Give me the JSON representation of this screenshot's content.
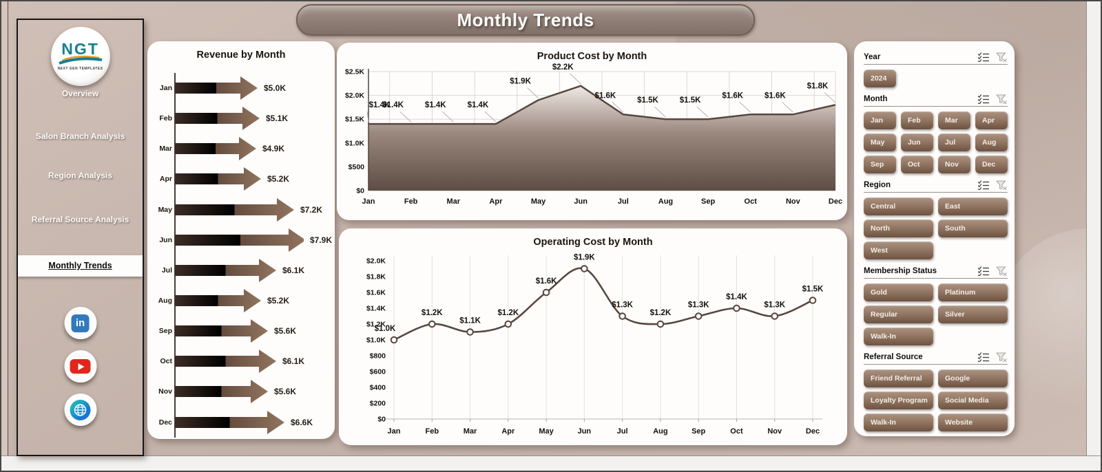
{
  "page_title": "Monthly Trends",
  "sidebar": {
    "logo_text": "NGT",
    "logo_subtext": "NEXT GEN TEMPLATES",
    "items": [
      {
        "label": "Overview",
        "active": false
      },
      {
        "label": "Salon Branch Analysis",
        "active": false
      },
      {
        "label": "Region Analysis",
        "active": false
      },
      {
        "label": "Referral Source Analysis",
        "active": false
      },
      {
        "label": "Monthly Trends",
        "active": true
      }
    ],
    "social": [
      "linkedin",
      "youtube",
      "globe"
    ]
  },
  "chart_data": [
    {
      "type": "bar",
      "orientation": "horizontal",
      "title": "Revenue by Month",
      "categories": [
        "Jan",
        "Feb",
        "Mar",
        "Apr",
        "May",
        "Jun",
        "Jul",
        "Aug",
        "Sep",
        "Oct",
        "Nov",
        "Dec"
      ],
      "values": [
        5000,
        5100,
        4900,
        5200,
        7200,
        7900,
        6100,
        5200,
        5600,
        6100,
        5600,
        6600
      ],
      "value_labels": [
        "$5.0K",
        "$5.1K",
        "$4.9K",
        "$5.2K",
        "$7.2K",
        "$7.9K",
        "$6.1K",
        "$5.2K",
        "$5.6K",
        "$6.1K",
        "$5.6K",
        "$6.6K"
      ],
      "xlim": [
        0,
        7900
      ]
    },
    {
      "type": "area",
      "title": "Product Cost by Month",
      "categories": [
        "Jan",
        "Feb",
        "Mar",
        "Apr",
        "May",
        "Jun",
        "Jul",
        "Aug",
        "Sep",
        "Oct",
        "Nov",
        "Dec"
      ],
      "values": [
        1400,
        1400,
        1400,
        1400,
        1900,
        2200,
        1600,
        1500,
        1500,
        1600,
        1600,
        1800
      ],
      "value_labels": [
        "$1.4K",
        "$1.4K",
        "$1.4K",
        "$1.4K",
        "$1.9K",
        "$2.2K",
        "$1.6K",
        "$1.5K",
        "$1.5K",
        "$1.6K",
        "$1.6K",
        "$1.8K"
      ],
      "ylim": [
        0,
        2500
      ],
      "yticks": [
        {
          "v": 0,
          "label": "$0"
        },
        {
          "v": 500,
          "label": "$500"
        },
        {
          "v": 1000,
          "label": "$1.0K"
        },
        {
          "v": 1500,
          "label": "$1.5K"
        },
        {
          "v": 2000,
          "label": "$2.0K"
        },
        {
          "v": 2500,
          "label": "$2.5K"
        }
      ],
      "grid": "horizontal and vertical, light gray",
      "legend": "none"
    },
    {
      "type": "line",
      "title": "Operating Cost by Month",
      "categories": [
        "Jan",
        "Feb",
        "Mar",
        "Apr",
        "May",
        "Jun",
        "Jul",
        "Aug",
        "Sep",
        "Oct",
        "Nov",
        "Dec"
      ],
      "values": [
        1000,
        1200,
        1100,
        1200,
        1600,
        1900,
        1300,
        1200,
        1300,
        1400,
        1300,
        1500
      ],
      "value_labels": [
        "$1.0K",
        "$1.2K",
        "$1.1K",
        "$1.2K",
        "$1.6K",
        "$1.9K",
        "$1.3K",
        "$1.2K",
        "$1.3K",
        "$1.4K",
        "$1.3K",
        "$1.5K"
      ],
      "ylim": [
        0,
        2000
      ],
      "yticks": [
        {
          "v": 0,
          "label": "$0"
        },
        {
          "v": 200,
          "label": "$200"
        },
        {
          "v": 400,
          "label": "$400"
        },
        {
          "v": 600,
          "label": "$600"
        },
        {
          "v": 800,
          "label": "$800"
        },
        {
          "v": 1000,
          "label": "$1.0K"
        },
        {
          "v": 1200,
          "label": "$1.2K"
        },
        {
          "v": 1400,
          "label": "$1.4K"
        },
        {
          "v": 1600,
          "label": "$1.6K"
        },
        {
          "v": 1800,
          "label": "$1.8K"
        },
        {
          "v": 2000,
          "label": "$2.0K"
        }
      ],
      "grid": "vertical only, light gray",
      "legend": "none"
    }
  ],
  "slicers": [
    {
      "name": "Year",
      "columns": 4,
      "options": [
        "2024"
      ]
    },
    {
      "name": "Month",
      "columns": 4,
      "options": [
        "Jan",
        "Feb",
        "Mar",
        "Apr",
        "May",
        "Jun",
        "Jul",
        "Aug",
        "Sep",
        "Oct",
        "Nov",
        "Dec"
      ]
    },
    {
      "name": "Region",
      "columns": 2,
      "options": [
        "Central",
        "East",
        "North",
        "South",
        "West"
      ]
    },
    {
      "name": "Membership Status",
      "columns": 2,
      "options": [
        "Gold",
        "Platinum",
        "Regular",
        "Silver",
        "Walk-In"
      ]
    },
    {
      "name": "Referral Source",
      "columns": 2,
      "options": [
        "Friend Referral",
        "Google",
        "Loyalty Program",
        "Social Media",
        "Walk-In",
        "Website"
      ]
    }
  ],
  "colors": {
    "background_taupe": "#c7b6ad",
    "card_white": "#fefdfc",
    "chart_line": "#57473e",
    "area_gradient_top": "#efe9e5",
    "area_gradient_bottom": "#5e4d44",
    "arrow_dark": "#3c2c25",
    "arrow_light": "#91745f",
    "slicer_button_top": "#ac9381",
    "slicer_button_bottom": "#6d5343",
    "logo_teal": "#15808f"
  }
}
